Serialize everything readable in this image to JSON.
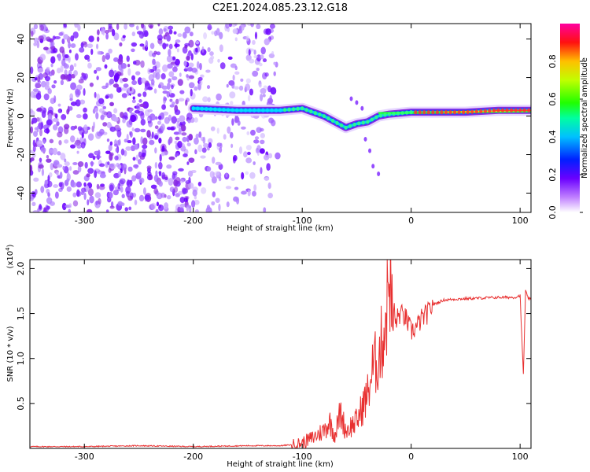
{
  "title": "C2E1.2024.085.23.12.G18",
  "chart_data": [
    {
      "type": "heatmap",
      "xlabel": "Height of straight line (km)",
      "ylabel": "Frequency (Hz)",
      "xlim": [
        -350,
        110
      ],
      "ylim": [
        -50,
        48
      ],
      "xticks": [
        -300,
        -200,
        -100,
        0,
        100
      ],
      "yticks": [
        -40,
        -20,
        0,
        20,
        40
      ],
      "colorbar": {
        "label": "Normalized spectral amplitude",
        "range": [
          0,
          1
        ],
        "ticks": [
          "0.0",
          "0.2",
          "0.4",
          "0.6",
          "0.8"
        ],
        "colormap": "rainbow (white-violet-blue-cyan-green-yellow-red-magenta)"
      },
      "ridge": {
        "x": [
          -200,
          -160,
          -120,
          -100,
          -80,
          -60,
          -50,
          -40,
          -30,
          -20,
          0,
          20,
          50,
          80,
          110
        ],
        "y": [
          4,
          3,
          3,
          4,
          0,
          -6,
          -4,
          -3,
          0,
          1,
          2,
          2,
          2,
          3,
          3
        ]
      }
    },
    {
      "type": "line",
      "xlabel": "Height of straight line (km)",
      "ylabel": "SNR (10 * v/v)",
      "y_multiplier": "(x10",
      "y_multiplier_exp": "4",
      "y_multiplier_close": ")",
      "xlim": [
        -350,
        110
      ],
      "ylim": [
        0,
        2.1
      ],
      "xticks": [
        -300,
        -200,
        -100,
        0,
        100
      ],
      "yticks": [
        "0.5",
        "1.0",
        "1.5",
        "2.0"
      ],
      "series": [
        {
          "color": "#e83030",
          "x": [
            -350,
            -300,
            -250,
            -200,
            -150,
            -120,
            -110,
            -100,
            -90,
            -80,
            -75,
            -70,
            -65,
            -60,
            -55,
            -50,
            -45,
            -40,
            -35,
            -30,
            -25,
            -22,
            -20,
            -18,
            -15,
            -10,
            -5,
            0,
            5,
            10,
            15,
            20,
            30,
            40,
            60,
            80,
            95,
            100,
            103,
            105,
            107,
            110
          ],
          "y": [
            0.02,
            0.02,
            0.03,
            0.02,
            0.03,
            0.03,
            0.04,
            0.06,
            0.12,
            0.2,
            0.3,
            0.15,
            0.4,
            0.2,
            0.25,
            0.3,
            0.45,
            0.6,
            0.9,
            1.0,
            1.3,
            1.6,
            2.1,
            1.5,
            1.4,
            1.5,
            1.45,
            1.3,
            1.35,
            1.45,
            1.5,
            1.6,
            1.65,
            1.66,
            1.67,
            1.68,
            1.68,
            1.7,
            0.82,
            1.75,
            1.68,
            1.65
          ]
        }
      ]
    }
  ]
}
